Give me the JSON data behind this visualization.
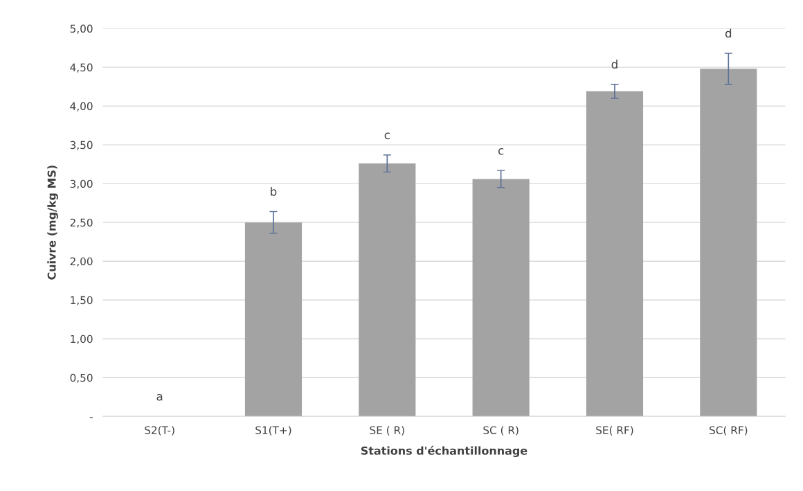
{
  "chart_data": {
    "type": "bar",
    "xlabel": "Stations d'échantillonnage",
    "ylabel": "Cuivre (mg/kg MS)",
    "categories": [
      "S2(T-)",
      "S1(T+)",
      "SE ( R)",
      "SC ( R)",
      "SE( RF)",
      "SC( RF)"
    ],
    "values": [
      0,
      2.5,
      3.26,
      3.06,
      4.19,
      4.48
    ],
    "errors": [
      null,
      0.14,
      0.11,
      0.11,
      0.09,
      0.2
    ],
    "color": "#a3a3a3",
    "ylim": [
      0,
      5
    ],
    "yticks": [
      {
        "value": 0,
        "label": "-"
      },
      {
        "value": 0.5,
        "label": "0,50"
      },
      {
        "value": 1,
        "label": "1,00"
      },
      {
        "value": 1.5,
        "label": "1,50"
      },
      {
        "value": 2,
        "label": "2,00"
      },
      {
        "value": 2.5,
        "label": "2,50"
      },
      {
        "value": 3,
        "label": "3,00"
      },
      {
        "value": 3.5,
        "label": "3,50"
      },
      {
        "value": 4,
        "label": "4,00"
      },
      {
        "value": 4.5,
        "label": "4,50"
      },
      {
        "value": 5,
        "label": "5,00"
      }
    ],
    "grid": "y",
    "annotations": [
      "a",
      "b",
      "c",
      "c",
      "d",
      "d"
    ]
  }
}
